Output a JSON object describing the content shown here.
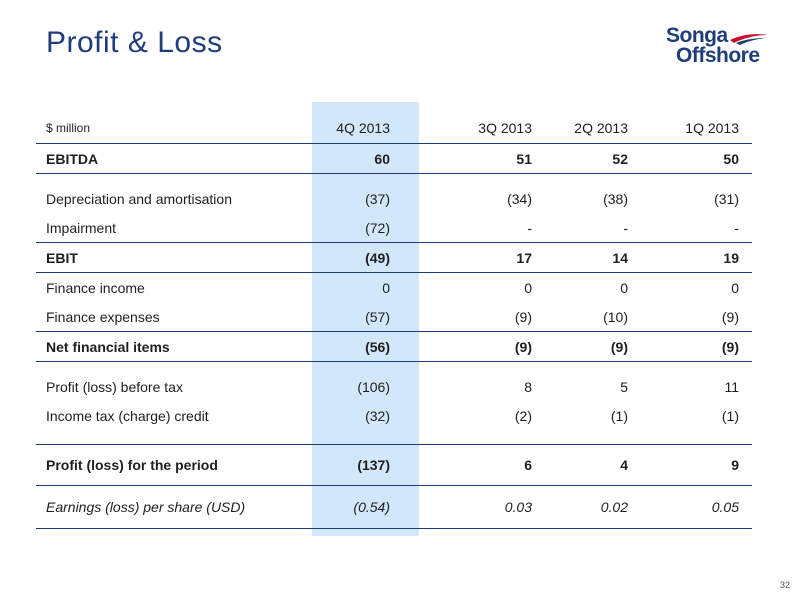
{
  "slide": {
    "title": "Profit & Loss",
    "page_number": "32"
  },
  "logo": {
    "line1": "Songa",
    "line2": "Offshore",
    "colors": {
      "navy": "#1f3d7a",
      "red": "#c8102e"
    }
  },
  "table": {
    "header": {
      "label": "$ million",
      "cols": [
        "4Q 2013",
        "3Q 2013",
        "2Q 2013",
        "1Q 2013"
      ]
    },
    "rows": [
      {
        "label": "EBITDA",
        "values": [
          "60",
          "51",
          "52",
          "50"
        ]
      },
      {
        "label": "Depreciation and amortisation",
        "values": [
          "(37)",
          "(34)",
          "(38)",
          "(31)"
        ]
      },
      {
        "label": "Impairment",
        "values": [
          "(72)",
          "-",
          "-",
          "-"
        ]
      },
      {
        "label": "EBIT",
        "values": [
          "(49)",
          "17",
          "14",
          "19"
        ]
      },
      {
        "label": "Finance income",
        "values": [
          "0",
          "0",
          "0",
          "0"
        ]
      },
      {
        "label": "Finance expenses",
        "values": [
          "(57)",
          "(9)",
          "(10)",
          "(9)"
        ]
      },
      {
        "label": "Net financial items",
        "values": [
          "(56)",
          "(9)",
          "(9)",
          "(9)"
        ]
      },
      {
        "label": "Profit (loss) before tax",
        "values": [
          "(106)",
          "8",
          "5",
          "11"
        ]
      },
      {
        "label": "Income tax (charge) credit",
        "values": [
          "(32)",
          "(2)",
          "(1)",
          "(1)"
        ]
      },
      {
        "label": "Profit (loss) for the period",
        "values": [
          "(137)",
          "6",
          "4",
          "9"
        ]
      },
      {
        "label": "Earnings (loss) per share (USD)",
        "values": [
          "(0.54)",
          "0.03",
          "0.02",
          "0.05"
        ]
      }
    ],
    "highlight_color": "#d3e7fb",
    "rule_color": "#1f3d7a"
  }
}
